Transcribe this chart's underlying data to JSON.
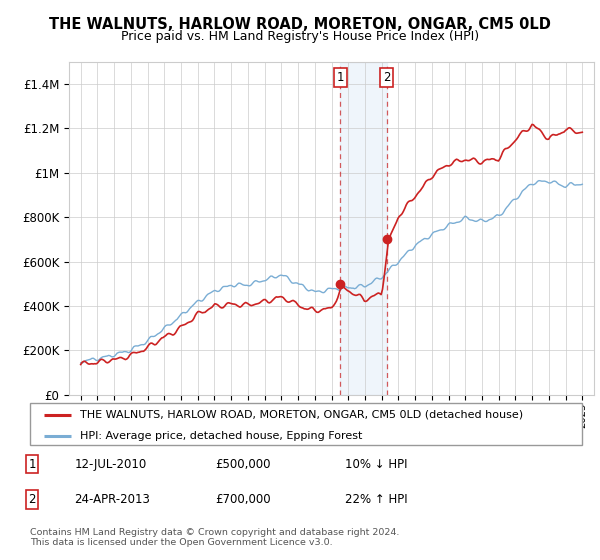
{
  "title": "THE WALNUTS, HARLOW ROAD, MORETON, ONGAR, CM5 0LD",
  "subtitle": "Price paid vs. HM Land Registry's House Price Index (HPI)",
  "yticks": [
    0,
    200000,
    400000,
    600000,
    800000,
    1000000,
    1200000,
    1400000
  ],
  "ylim": [
    0,
    1500000
  ],
  "sale1_year": 2010.53,
  "sale1_price": 500000,
  "sale2_year": 2013.3,
  "sale2_price": 700000,
  "red_line_color": "#cc2222",
  "blue_line_color": "#7aadd4",
  "highlight_color": "#ddeeff",
  "legend_label_red": "THE WALNUTS, HARLOW ROAD, MORETON, ONGAR, CM5 0LD (detached house)",
  "legend_label_blue": "HPI: Average price, detached house, Epping Forest",
  "footer": "Contains HM Land Registry data © Crown copyright and database right 2024.\nThis data is licensed under the Open Government Licence v3.0.",
  "grid_color": "#cccccc"
}
